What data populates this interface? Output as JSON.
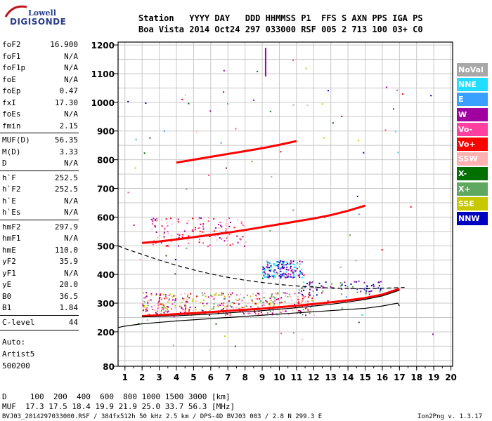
{
  "header": {
    "logo_top": "Lowell",
    "logo_main": "DIGISONDE",
    "row1": "Station   YYYY DAY   DDD HHMMSS P1  FFS S AXN PPS IGA PS",
    "row2": "Boa Vista 2014 Oct24 297 033000 RSF 005 2 713 100 03+ C0"
  },
  "params": [
    {
      "name": "foF2",
      "value": "16.900"
    },
    {
      "name": "foF1",
      "value": "N/A"
    },
    {
      "name": "foF1p",
      "value": "N/A"
    },
    {
      "name": "foE",
      "value": "N/A"
    },
    {
      "name": "foEp",
      "value": "0.47"
    },
    {
      "name": "fxI",
      "value": "17.30"
    },
    {
      "name": "foEs",
      "value": "N/A"
    },
    {
      "name": "fmin",
      "value": "2.15"
    },
    {
      "name": "MUF(D)",
      "value": "56.35"
    },
    {
      "name": "M(D)",
      "value": "3.33"
    },
    {
      "name": "D",
      "value": "N/A"
    },
    {
      "name": "h`F",
      "value": "252.5"
    },
    {
      "name": "h`F2",
      "value": "252.5"
    },
    {
      "name": "h`E",
      "value": "N/A"
    },
    {
      "name": "h`Es",
      "value": "N/A"
    },
    {
      "name": "hmF2",
      "value": "297.9"
    },
    {
      "name": "hmF1",
      "value": "N/A"
    },
    {
      "name": "hmE",
      "value": "110.0"
    },
    {
      "name": "yF2",
      "value": "35.9"
    },
    {
      "name": "yF1",
      "value": "N/A"
    },
    {
      "name": "yE",
      "value": "20.0"
    },
    {
      "name": "B0",
      "value": "36.5"
    },
    {
      "name": "B1",
      "value": "1.84"
    },
    {
      "name": "C-level",
      "value": "44"
    }
  ],
  "auto": {
    "label": "Auto:",
    "scaler": "Artist5",
    "version": "500200"
  },
  "legend": [
    {
      "label": "NoVal",
      "color": "#a8a8a8"
    },
    {
      "label": "NNE",
      "color": "#22ddff"
    },
    {
      "label": "E",
      "color": "#3aa0ff"
    },
    {
      "label": "W",
      "color": "#a000a0"
    },
    {
      "label": "Vo-",
      "color": "#ff40a0"
    },
    {
      "label": "Vo+",
      "color": "#ff0000"
    },
    {
      "label": "SSW",
      "color": "#ffb0b0"
    },
    {
      "label": "X-",
      "color": "#007000"
    },
    {
      "label": "X+",
      "color": "#60a860"
    },
    {
      "label": "SSE",
      "color": "#c8c800"
    },
    {
      "label": "NNW",
      "color": "#0000c0"
    }
  ],
  "footer": {
    "d_row": "D     100  200  400  600  800 1000 1500 3000 [km]",
    "muf_row": "MUF  17.3 17.5 18.4 19.9 21.9 25.0 33.7 56.3 [MHz]",
    "file_info": "BVJ03_2014297033000.RSF / 384fx512h 50 kHz 2.5 km / DPS-4D BVJ03 003 / 2.8 N 299.3 E",
    "program": "Ion2Png v. 1.3.17"
  },
  "chart_data": {
    "type": "scatter",
    "title": "",
    "xlabel": "",
    "ylabel": "",
    "xlim": [
      0.6,
      20.1
    ],
    "ylim": [
      80,
      1210
    ],
    "x_ticks": [
      1,
      2,
      3,
      4,
      5,
      6,
      7,
      8,
      9,
      10,
      11,
      12,
      13,
      14,
      15,
      16,
      17,
      18,
      19,
      20
    ],
    "y_ticks": [
      80,
      200,
      300,
      400,
      500,
      600,
      700,
      800,
      900,
      1000,
      1100,
      1200
    ],
    "grid": true,
    "legend_position": "right",
    "series": [
      {
        "kind": "ordinary_trace",
        "color": "#ff0000",
        "x": [
          2.0,
          3,
          4,
          5,
          6,
          7,
          8,
          9,
          10,
          11,
          12,
          13,
          14,
          15,
          16,
          17.0
        ],
        "y": [
          255,
          258,
          262,
          265,
          269,
          273,
          277,
          281,
          286,
          291,
          297,
          303,
          310,
          318,
          330,
          350
        ]
      },
      {
        "kind": "second_hop",
        "color": "#ff0000",
        "x": [
          2.0,
          3,
          4,
          5,
          6,
          7,
          8,
          9,
          10,
          11,
          12,
          13,
          14,
          15
        ],
        "y": [
          510,
          515,
          522,
          530,
          538,
          546,
          555,
          565,
          575,
          585,
          595,
          607,
          622,
          640
        ]
      },
      {
        "kind": "third_hop",
        "color": "#ff0000",
        "x": [
          4.0,
          5,
          6,
          7,
          8,
          9,
          10,
          11
        ],
        "y": [
          790,
          800,
          810,
          820,
          830,
          840,
          852,
          865
        ]
      },
      {
        "kind": "true_height_profile",
        "color": "#000000",
        "x": [
          0.6,
          1,
          2,
          3,
          4,
          5,
          6,
          7,
          8,
          9,
          10,
          11,
          12,
          13,
          14,
          15,
          16,
          16.9,
          17.0
        ],
        "y": [
          215,
          220,
          228,
          233,
          238,
          242,
          246,
          250,
          254,
          258,
          262,
          266,
          270,
          274,
          278,
          282,
          290,
          300,
          290
        ]
      },
      {
        "kind": "model_ordinary",
        "color": "#000000",
        "x": [
          2.0,
          3,
          4,
          5,
          6,
          7,
          8,
          9,
          10,
          11,
          12,
          13,
          14,
          15,
          16,
          17.0
        ],
        "y": [
          252,
          254,
          256,
          259,
          262,
          266,
          270,
          274,
          279,
          284,
          290,
          296,
          304,
          313,
          325,
          345
        ]
      },
      {
        "kind": "model_extraordinary",
        "color": "#000000",
        "dash": true,
        "x": [
          0.6,
          1,
          2,
          3,
          4,
          5,
          6,
          7,
          8,
          9,
          10,
          11,
          12,
          13,
          14,
          15,
          16,
          17.3
        ],
        "y": [
          500,
          490,
          470,
          450,
          432,
          416,
          402,
          390,
          380,
          372,
          365,
          360,
          356,
          353,
          351,
          350,
          352,
          355
        ]
      }
    ]
  }
}
